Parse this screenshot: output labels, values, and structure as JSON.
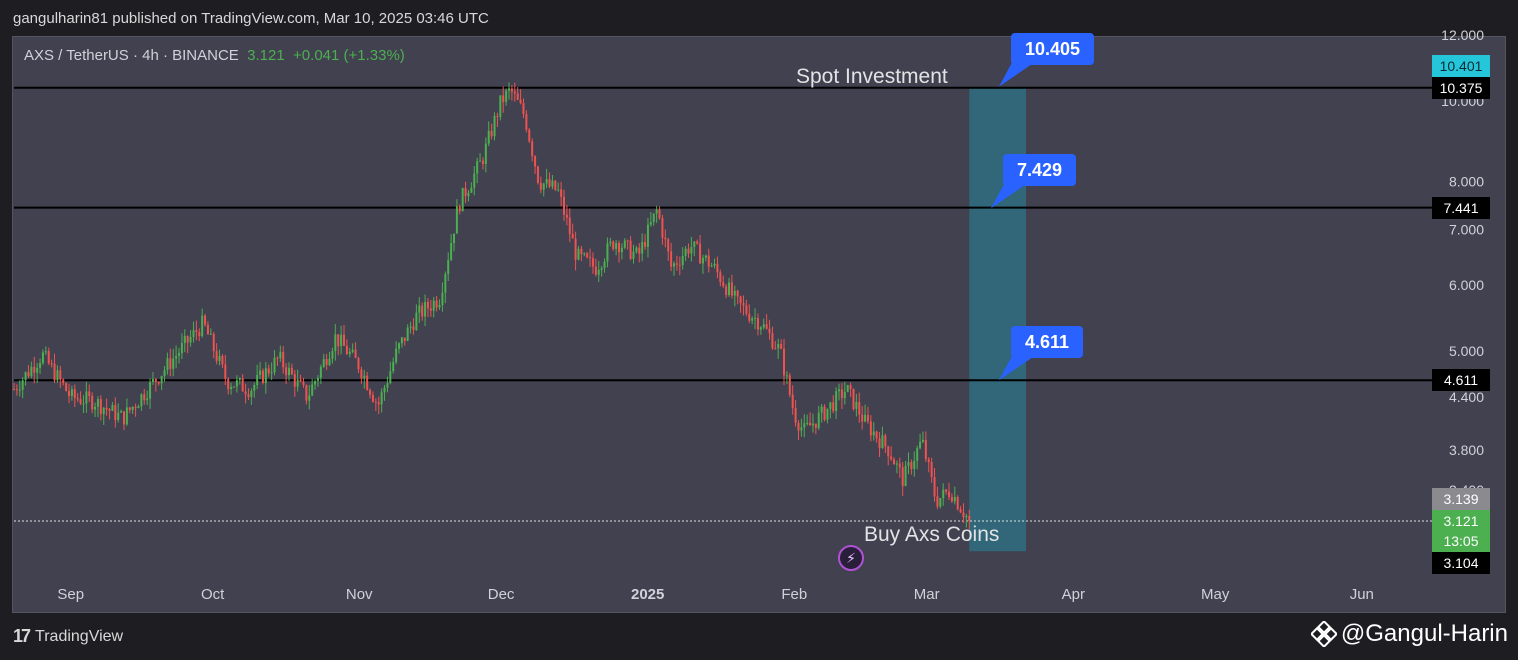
{
  "header": {
    "published_line": "gangulharin81 published on TradingView.com, Mar 10, 2025 03:46 UTC"
  },
  "symbol": {
    "pair": "AXS / TetherUS · 4h · BINANCE",
    "last": "3.121",
    "change": "+0.041 (+1.33%)"
  },
  "annotations": {
    "spot_investment": "Spot Investment",
    "buy_coins": "Buy Axs Coins"
  },
  "callouts": [
    {
      "label": "10.405",
      "value": 10.405
    },
    {
      "label": "7.429",
      "value": 7.429
    },
    {
      "label": "4.611",
      "value": 4.611
    }
  ],
  "price_tags": [
    {
      "label": "10.401",
      "value": 10.401,
      "color": "#26c6da",
      "text_color": "#0b2a33"
    },
    {
      "label": "10.375",
      "value": 10.375,
      "color": "#000000",
      "text_color": "#ffffff"
    },
    {
      "label": "7.441",
      "value": 7.441,
      "color": "#000000",
      "text_color": "#ffffff"
    },
    {
      "label": "4.611",
      "value": 4.611,
      "color": "#000000",
      "text_color": "#ffffff"
    },
    {
      "label": "3.139",
      "value": 3.139,
      "color": "#8a8a8f",
      "text_color": "#ffffff"
    },
    {
      "label": "3.121",
      "value": 3.121,
      "color": "#4caf50",
      "text_color": "#ffffff"
    },
    {
      "label": "13:05",
      "value": 3.121,
      "color": "#4caf50",
      "text_color": "#ffffff"
    },
    {
      "label": "3.104",
      "value": 3.104,
      "color": "#000000",
      "text_color": "#ffffff"
    }
  ],
  "footer": {
    "brand": "TradingView",
    "watermark": "@Gangul-Harin"
  },
  "icons": {
    "brand_logo": "tradingview-logo-icon",
    "watermark_logo": "binance-diamond-icon",
    "live_marker": "lightning-icon"
  },
  "colors": {
    "background": "#414150",
    "up_candle": "#4caf50",
    "down_candle": "#ef5350",
    "callout": "#2962ff",
    "zone": "#2f6f80"
  },
  "chart_data": {
    "type": "candlestick",
    "scale": "log",
    "ylim": [
      2.87,
      12.0
    ],
    "y_ticks": [
      "12.000",
      "10.000",
      "8.000",
      "7.000",
      "6.000",
      "5.000",
      "4.400",
      "3.800",
      "3.400"
    ],
    "x_ticks": [
      "Sep",
      "Oct",
      "Nov",
      "Dec",
      "2025",
      "Feb",
      "Mar",
      "Apr",
      "May",
      "Jun"
    ],
    "x_range": [
      "2024-08-20",
      "2025-06-15"
    ],
    "horizontal_lines": [
      10.375,
      7.441,
      4.611,
      3.121
    ],
    "zone": {
      "x_start": "2025-03-10",
      "x_end": "2025-03-22",
      "y_low": 2.87,
      "y_high": 10.375
    },
    "series": [
      {
        "x": [
          "2024-08-20",
          "2024-08-26",
          "2024-09-01",
          "2024-09-06",
          "2024-09-12",
          "2024-09-18",
          "2024-09-24",
          "2024-09-29",
          "2024-10-04",
          "2024-10-09",
          "2024-10-15",
          "2024-10-21",
          "2024-10-27",
          "2024-11-01",
          "2024-11-05",
          "2024-11-09",
          "2024-11-13",
          "2024-11-18",
          "2024-11-22",
          "2024-11-27",
          "2024-12-01",
          "2024-12-03",
          "2024-12-06",
          "2024-12-09",
          "2024-12-13",
          "2024-12-17",
          "2024-12-21",
          "2024-12-25",
          "2024-12-30",
          "2025-01-03",
          "2025-01-06",
          "2025-01-10",
          "2025-01-15",
          "2025-01-20",
          "2025-01-25",
          "2025-01-29",
          "2025-02-01",
          "2025-02-03",
          "2025-02-07",
          "2025-02-12",
          "2025-02-16",
          "2025-02-21",
          "2025-02-24",
          "2025-02-28",
          "2025-03-03",
          "2025-03-06",
          "2025-03-10"
        ],
        "close": [
          4.5,
          4.95,
          4.4,
          4.35,
          4.15,
          4.55,
          5.0,
          5.4,
          4.6,
          4.5,
          4.9,
          4.4,
          5.2,
          4.8,
          4.3,
          5.0,
          5.5,
          5.8,
          7.5,
          8.5,
          10.0,
          10.3,
          9.6,
          8.0,
          7.8,
          6.5,
          6.3,
          6.8,
          6.5,
          7.4,
          6.3,
          6.7,
          6.3,
          5.7,
          5.4,
          5.0,
          4.2,
          4.0,
          4.2,
          4.5,
          4.1,
          3.8,
          3.5,
          3.9,
          3.3,
          3.4,
          3.121
        ]
      }
    ]
  }
}
